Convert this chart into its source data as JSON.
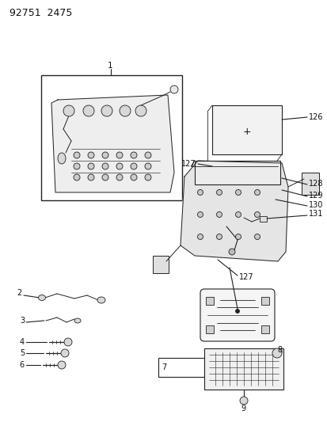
{
  "title": "92751  2475",
  "background_color": "#ffffff",
  "line_color": "#222222",
  "text_color": "#111111",
  "fig_width": 4.14,
  "fig_height": 5.33,
  "dpi": 100
}
